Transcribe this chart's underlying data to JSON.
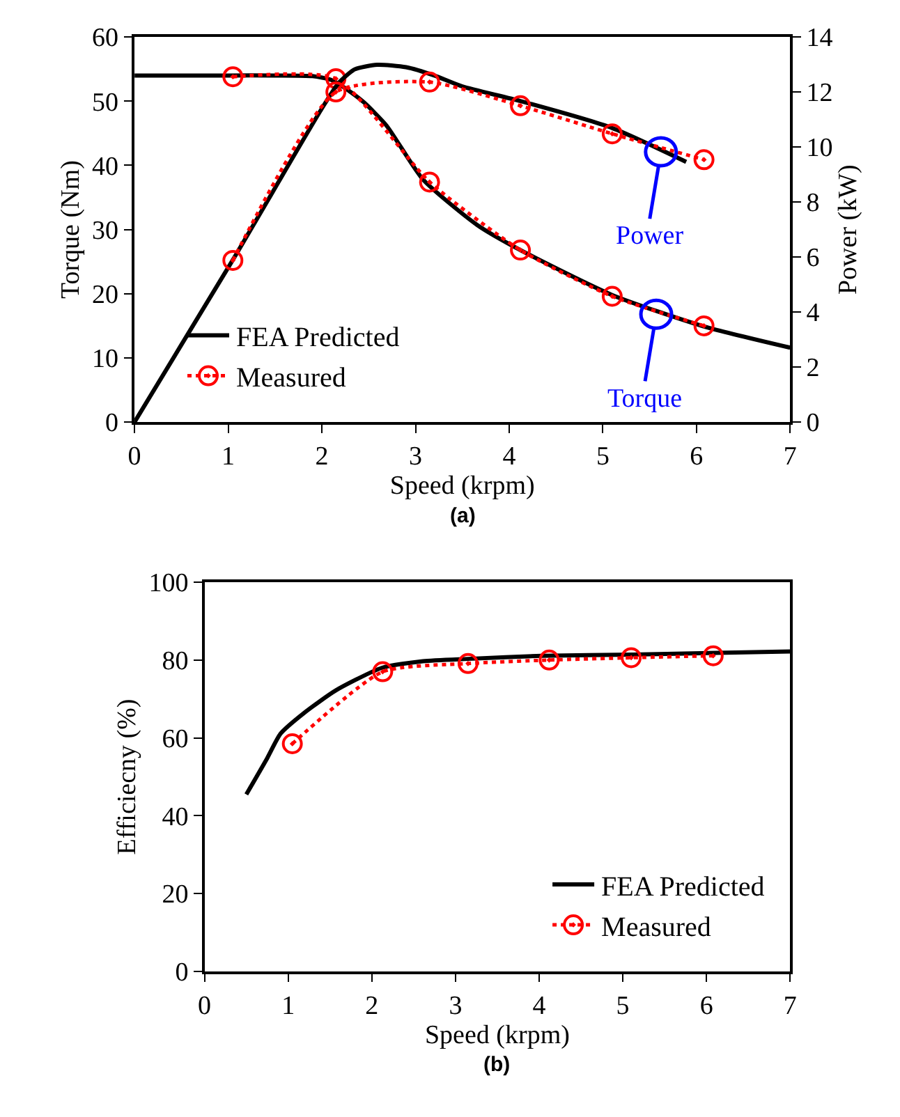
{
  "chart_data": [
    {
      "type": "line",
      "title": "(a)",
      "xlabel": "Speed (krpm)",
      "ylabel": "Torque (Nm)",
      "y2label": "Power (kW)",
      "xlim": [
        0,
        7
      ],
      "xticks": [
        0,
        1,
        2,
        3,
        4,
        5,
        6,
        7
      ],
      "ylim": [
        0,
        60
      ],
      "yticks": [
        0,
        10,
        20,
        30,
        40,
        50,
        60
      ],
      "y2lim": [
        0,
        14
      ],
      "y2ticks": [
        0,
        2,
        4,
        6,
        8,
        10,
        12,
        14
      ],
      "legend": "bottom left",
      "series": [
        {
          "name": "FEA Predicted",
          "color": "#000000",
          "line_style": "solid",
          "marker": "none",
          "x": [
            0,
            1.0,
            1.5,
            1.9,
            2.1,
            2.3,
            2.45,
            2.69,
            3.08,
            3.66,
            4.12,
            5.1,
            6.08,
            7
          ],
          "values": [
            54,
            54,
            54,
            53.9,
            53.3,
            51.5,
            49.8,
            46.2,
            37.8,
            30.7,
            26.8,
            19.8,
            14.9,
            11.6
          ]
        },
        {
          "color": "#000000",
          "line_style": "solid",
          "marker": "none",
          "axis": "y2",
          "x": [
            0,
            1.05,
            2.0,
            2.18,
            2.35,
            2.59,
            2.9,
            3.2,
            3.5,
            4.12,
            5.1,
            5.89
          ],
          "values": [
            0,
            5.9,
            11.4,
            12.33,
            12.82,
            12.99,
            12.9,
            12.6,
            12.2,
            11.67,
            10.69,
            9.46
          ]
        },
        {
          "name": "Measured",
          "color": "#ff0000",
          "line_style": "dotted",
          "marker": "circle",
          "x": [
            1.05,
            2.15,
            3.15,
            4.12,
            5.1,
            6.08
          ],
          "values": [
            53.8,
            53.5,
            37.4,
            26.8,
            19.6,
            15.0
          ]
        },
        {
          "color": "#ff0000",
          "line_style": "dotted",
          "marker": "circle",
          "axis": "y2",
          "x": [
            1.05,
            2.15,
            3.15,
            4.12,
            5.1,
            6.08
          ],
          "values": [
            5.88,
            12.0,
            12.36,
            11.5,
            10.48,
            9.54
          ]
        }
      ],
      "annotations": [
        {
          "text": "Power",
          "x": 5.62,
          "y": 42.1
        },
        {
          "text": "Torque",
          "x": 5.57,
          "y": 16.8
        }
      ]
    },
    {
      "type": "line",
      "title": "(b)",
      "xlabel": "Speed (krpm)",
      "ylabel": "Efficiecny (%)",
      "xlim": [
        0,
        7
      ],
      "xticks": [
        0,
        1,
        2,
        3,
        4,
        5,
        6,
        7
      ],
      "ylim": [
        0,
        100
      ],
      "yticks": [
        0,
        20,
        40,
        60,
        80,
        100
      ],
      "legend": "bottom right",
      "series": [
        {
          "name": "FEA Predicted",
          "color": "#000000",
          "line_style": "solid",
          "marker": "none",
          "x": [
            0.5,
            0.75,
            0.91,
            1.19,
            1.57,
            2.12,
            2.61,
            3.15,
            4.03,
            5.12,
            7
          ],
          "values": [
            45.5,
            54.8,
            61.1,
            66.4,
            72.2,
            78.0,
            79.7,
            80.3,
            81.1,
            81.4,
            82.2
          ]
        },
        {
          "name": "Measured",
          "color": "#ff0000",
          "line_style": "dotted",
          "marker": "circle",
          "x": [
            1.05,
            2.13,
            3.15,
            4.12,
            5.1,
            6.08
          ],
          "values": [
            58.5,
            77.0,
            79.1,
            80.0,
            80.6,
            81.1
          ]
        }
      ]
    }
  ]
}
